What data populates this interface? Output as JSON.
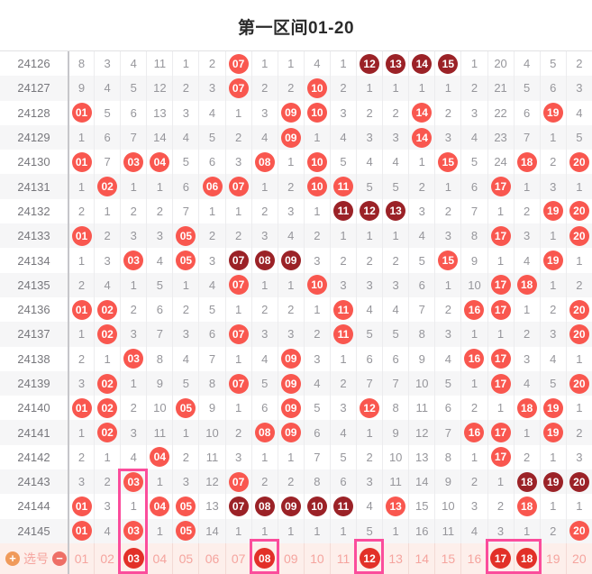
{
  "title": "第一区间01-20",
  "cell_codes": {
    "b": "red-ball",
    "d": "dark-red-ball",
    "s": "selected-ball",
    "plain": "miss-count"
  },
  "rows": [
    {
      "label": "24126",
      "cells": [
        "8",
        "3",
        "4",
        "11",
        "1",
        "2",
        "b07",
        "1",
        "1",
        "4",
        "1",
        "d12",
        "d13",
        "d14",
        "d15",
        "1",
        "20",
        "4",
        "5",
        "2"
      ]
    },
    {
      "label": "24127",
      "cells": [
        "9",
        "4",
        "5",
        "12",
        "2",
        "3",
        "b07",
        "2",
        "2",
        "b10",
        "2",
        "1",
        "1",
        "1",
        "1",
        "2",
        "21",
        "5",
        "6",
        "3"
      ]
    },
    {
      "label": "24128",
      "cells": [
        "b01",
        "5",
        "6",
        "13",
        "3",
        "4",
        "1",
        "3",
        "b09",
        "b10",
        "3",
        "2",
        "2",
        "b14",
        "2",
        "3",
        "22",
        "6",
        "b19",
        "4"
      ]
    },
    {
      "label": "24129",
      "cells": [
        "1",
        "6",
        "7",
        "14",
        "4",
        "5",
        "2",
        "4",
        "b09",
        "1",
        "4",
        "3",
        "3",
        "b14",
        "3",
        "4",
        "23",
        "7",
        "1",
        "5"
      ]
    },
    {
      "label": "24130",
      "cells": [
        "b01",
        "7",
        "b03",
        "b04",
        "5",
        "6",
        "3",
        "b08",
        "1",
        "b10",
        "5",
        "4",
        "4",
        "1",
        "b15",
        "5",
        "24",
        "b18",
        "2",
        "b20"
      ]
    },
    {
      "label": "24131",
      "cells": [
        "1",
        "b02",
        "1",
        "1",
        "6",
        "b06",
        "b07",
        "1",
        "2",
        "b10",
        "b11",
        "5",
        "5",
        "2",
        "1",
        "6",
        "b17",
        "1",
        "3",
        "1"
      ]
    },
    {
      "label": "24132",
      "cells": [
        "2",
        "1",
        "2",
        "2",
        "7",
        "1",
        "1",
        "2",
        "3",
        "1",
        "d11",
        "d12",
        "d13",
        "3",
        "2",
        "7",
        "1",
        "2",
        "b19",
        "b20"
      ]
    },
    {
      "label": "24133",
      "cells": [
        "b01",
        "2",
        "3",
        "3",
        "b05",
        "2",
        "2",
        "3",
        "4",
        "2",
        "1",
        "1",
        "1",
        "4",
        "3",
        "8",
        "b17",
        "3",
        "1",
        "b20"
      ]
    },
    {
      "label": "24134",
      "cells": [
        "1",
        "3",
        "b03",
        "4",
        "b05",
        "3",
        "d07",
        "d08",
        "d09",
        "3",
        "2",
        "2",
        "2",
        "5",
        "b15",
        "9",
        "1",
        "4",
        "b19",
        "1"
      ]
    },
    {
      "label": "24135",
      "cells": [
        "2",
        "4",
        "1",
        "5",
        "1",
        "4",
        "b07",
        "1",
        "1",
        "b10",
        "3",
        "3",
        "3",
        "6",
        "1",
        "10",
        "b17",
        "b18",
        "1",
        "2"
      ]
    },
    {
      "label": "24136",
      "cells": [
        "b01",
        "b02",
        "2",
        "6",
        "2",
        "5",
        "1",
        "2",
        "2",
        "1",
        "b11",
        "4",
        "4",
        "7",
        "2",
        "b16",
        "b17",
        "1",
        "2",
        "b20"
      ]
    },
    {
      "label": "24137",
      "cells": [
        "1",
        "b02",
        "3",
        "7",
        "3",
        "6",
        "b07",
        "3",
        "3",
        "2",
        "b11",
        "5",
        "5",
        "8",
        "3",
        "1",
        "1",
        "2",
        "3",
        "b20"
      ]
    },
    {
      "label": "24138",
      "cells": [
        "2",
        "1",
        "b03",
        "8",
        "4",
        "7",
        "1",
        "4",
        "b09",
        "3",
        "1",
        "6",
        "6",
        "9",
        "4",
        "b16",
        "b17",
        "3",
        "4",
        "1"
      ]
    },
    {
      "label": "24139",
      "cells": [
        "3",
        "b02",
        "1",
        "9",
        "5",
        "8",
        "b07",
        "5",
        "b09",
        "4",
        "2",
        "7",
        "7",
        "10",
        "5",
        "1",
        "b17",
        "4",
        "5",
        "b20"
      ]
    },
    {
      "label": "24140",
      "cells": [
        "b01",
        "b02",
        "2",
        "10",
        "b05",
        "9",
        "1",
        "6",
        "b09",
        "5",
        "3",
        "b12",
        "8",
        "11",
        "6",
        "2",
        "1",
        "b18",
        "b19",
        "1"
      ]
    },
    {
      "label": "24141",
      "cells": [
        "1",
        "b02",
        "3",
        "11",
        "1",
        "10",
        "2",
        "b08",
        "b09",
        "6",
        "4",
        "1",
        "9",
        "12",
        "7",
        "b16",
        "b17",
        "1",
        "b19",
        "2"
      ]
    },
    {
      "label": "24142",
      "cells": [
        "2",
        "1",
        "4",
        "b04",
        "2",
        "11",
        "3",
        "1",
        "1",
        "7",
        "5",
        "2",
        "10",
        "13",
        "8",
        "1",
        "b17",
        "2",
        "1",
        "3"
      ]
    },
    {
      "label": "24143",
      "cells": [
        "3",
        "2",
        "b03",
        "1",
        "3",
        "12",
        "b07",
        "2",
        "2",
        "8",
        "6",
        "3",
        "11",
        "14",
        "9",
        "2",
        "1",
        "d18",
        "d19",
        "d20"
      ]
    },
    {
      "label": "24144",
      "cells": [
        "b01",
        "3",
        "1",
        "b04",
        "b05",
        "13",
        "d07",
        "d08",
        "d09",
        "d10",
        "d11",
        "4",
        "b13",
        "15",
        "10",
        "3",
        "2",
        "b18",
        "1",
        "1"
      ]
    },
    {
      "label": "24145",
      "cells": [
        "b01",
        "4",
        "b03",
        "1",
        "b05",
        "14",
        "1",
        "1",
        "1",
        "1",
        "1",
        "5",
        "1",
        "16",
        "11",
        "4",
        "3",
        "1",
        "2",
        "b20"
      ]
    }
  ],
  "footer": {
    "plus_label": "+",
    "label": "选号",
    "minus_label": "−",
    "cells": [
      "01",
      "02",
      "s03",
      "04",
      "05",
      "06",
      "07",
      "s08",
      "09",
      "10",
      "11",
      "s12",
      "13",
      "14",
      "15",
      "16",
      "s17",
      "s18",
      "19",
      "20"
    ]
  },
  "highlight_boxes": [
    {
      "cols": [
        3,
        3
      ],
      "from_row": 17,
      "to": "bottom"
    },
    {
      "cols": [
        8,
        8
      ],
      "from_row": "footer",
      "to": "bottom"
    },
    {
      "cols": [
        12,
        12
      ],
      "from_row": "footer",
      "to": "bottom"
    },
    {
      "cols": [
        17,
        18
      ],
      "from_row": "footer",
      "to": "bottom"
    }
  ],
  "colors": {
    "ball_red": "#f9574f",
    "ball_dark": "#9b2227",
    "ball_selected": "#e23028",
    "box_pink": "#fb4d9c",
    "footer_bg": "#fdefeb",
    "footer_text": "#f5a49e",
    "plus_bg": "#f09a5a",
    "minus_bg": "#ee6f66"
  }
}
